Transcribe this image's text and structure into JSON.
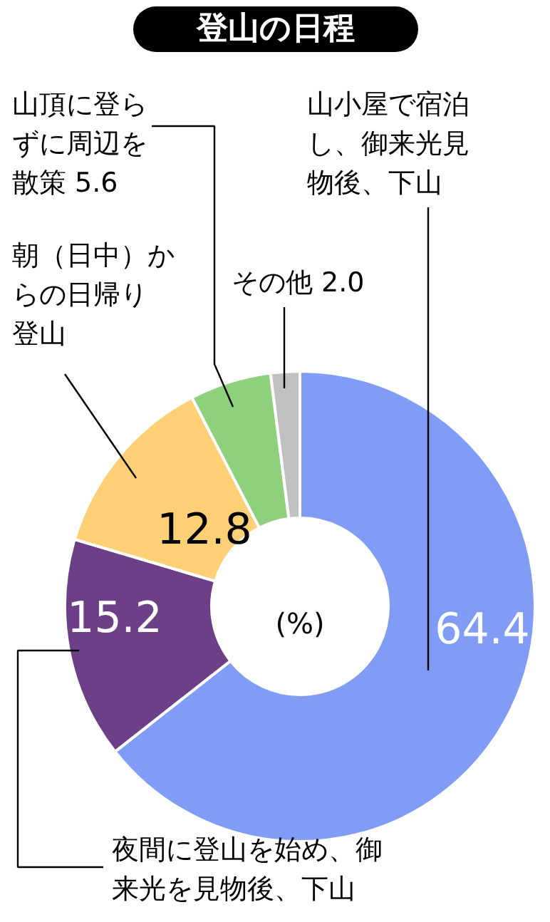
{
  "chart_data": {
    "type": "donut",
    "title": "登山の日程",
    "categories": [
      "山小屋で宿泊し、御来光見物後、下山",
      "夜間に登山を始め、御来光を見物後、下山",
      "朝（日中）からの日帰り登山",
      "山頂に登らずに周辺を散策 5.6",
      "その他 2.0"
    ],
    "values": [
      64.4,
      15.2,
      12.8,
      5.6,
      2.0
    ],
    "colors": [
      "#809cf4",
      "#6c3f86",
      "#fdd075",
      "#8fd07c",
      "#c0c0c0"
    ],
    "value_labels": [
      "64.4",
      "15.2",
      "12.8",
      null,
      null
    ],
    "annotations": [
      "(%)"
    ]
  }
}
